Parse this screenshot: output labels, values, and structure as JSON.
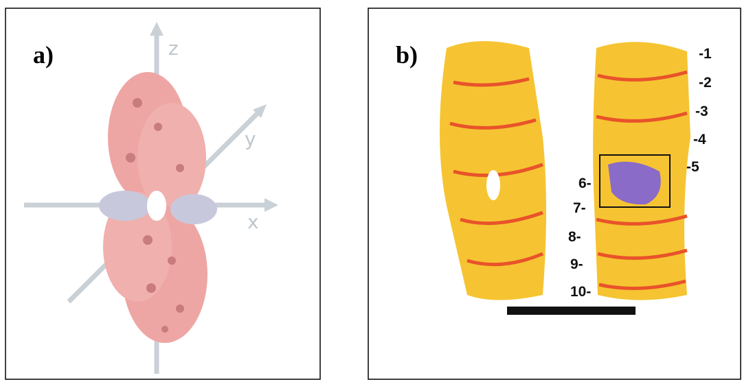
{
  "panels": [
    {
      "label": "a)",
      "axes": [
        "z",
        "y",
        "x"
      ]
    },
    {
      "label": "b)",
      "right_numbers": [
        "-1",
        "-2",
        "-3",
        "-4",
        "-5"
      ],
      "left_numbers": [
        "6-",
        "7-",
        "8-",
        "9-",
        "10-"
      ]
    }
  ]
}
